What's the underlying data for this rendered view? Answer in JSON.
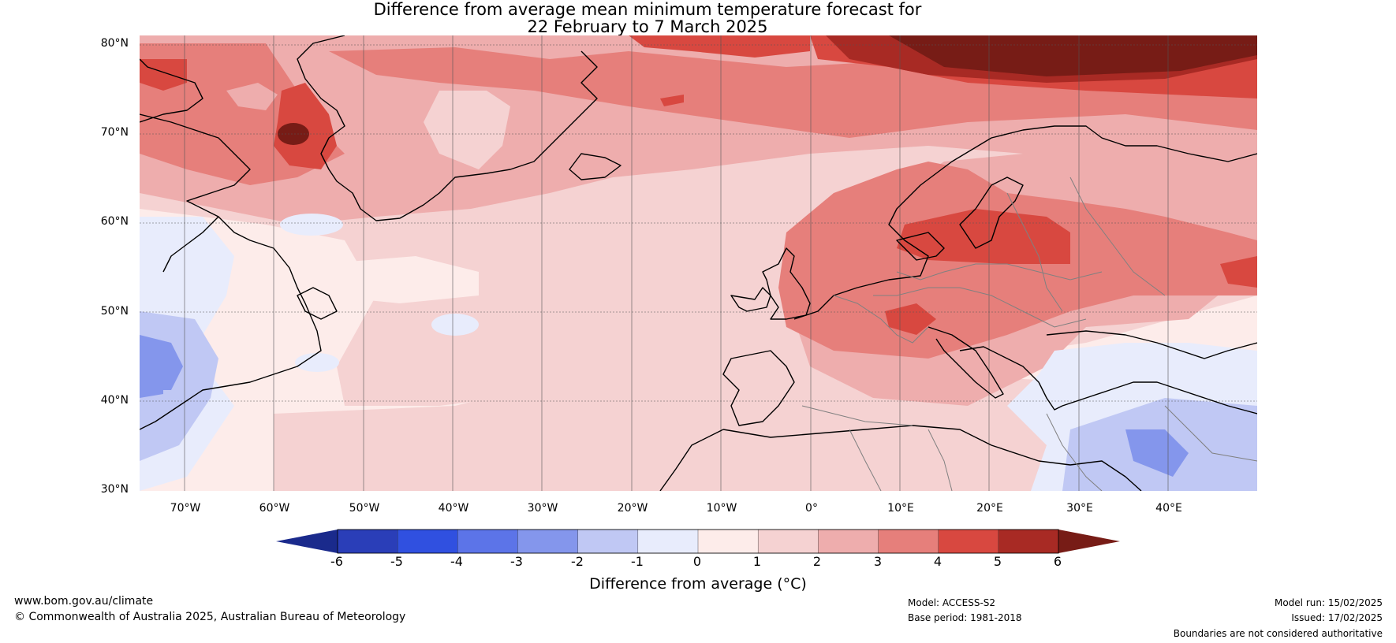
{
  "title": {
    "line1": "Difference from average mean minimum temperature forecast for",
    "line2": "22 February to 7 March 2025"
  },
  "lat_labels": [
    "80°N",
    "70°N",
    "60°N",
    "50°N",
    "40°N",
    "30°N"
  ],
  "lon_labels": [
    "70°W",
    "60°W",
    "50°W",
    "40°W",
    "30°W",
    "20°W",
    "10°W",
    "0°",
    "10°E",
    "20°E",
    "30°E",
    "40°E"
  ],
  "colorbar": {
    "ticks": [
      "-6",
      "-5",
      "-4",
      "-3",
      "-2",
      "-1",
      "0",
      "1",
      "2",
      "3",
      "4",
      "5",
      "6"
    ],
    "colors": [
      "#1a2a8c",
      "#2a3eb8",
      "#3050e0",
      "#5c74e8",
      "#8496ec",
      "#c0c8f4",
      "#e8ecfc",
      "#fdecea",
      "#f5d2d2",
      "#eeadad",
      "#e67f7b",
      "#d84840",
      "#a82a24",
      "#771c16"
    ],
    "label": "Difference from average (°C)"
  },
  "footer": {
    "url": "www.bom.gov.au/climate",
    "copyright": "© Commonwealth of Australia 2025, Australian Bureau of Meteorology",
    "model": "Model: ACCESS-S2",
    "base_period": "Base period: 1981-2018",
    "model_run": "Model run: 15/02/2025",
    "issued": "Issued: 17/02/2025",
    "disclaimer": "Boundaries are not considered authoritative"
  },
  "colors": {
    "coast": "#000000",
    "borders": "#808080",
    "grid": "#555555"
  }
}
